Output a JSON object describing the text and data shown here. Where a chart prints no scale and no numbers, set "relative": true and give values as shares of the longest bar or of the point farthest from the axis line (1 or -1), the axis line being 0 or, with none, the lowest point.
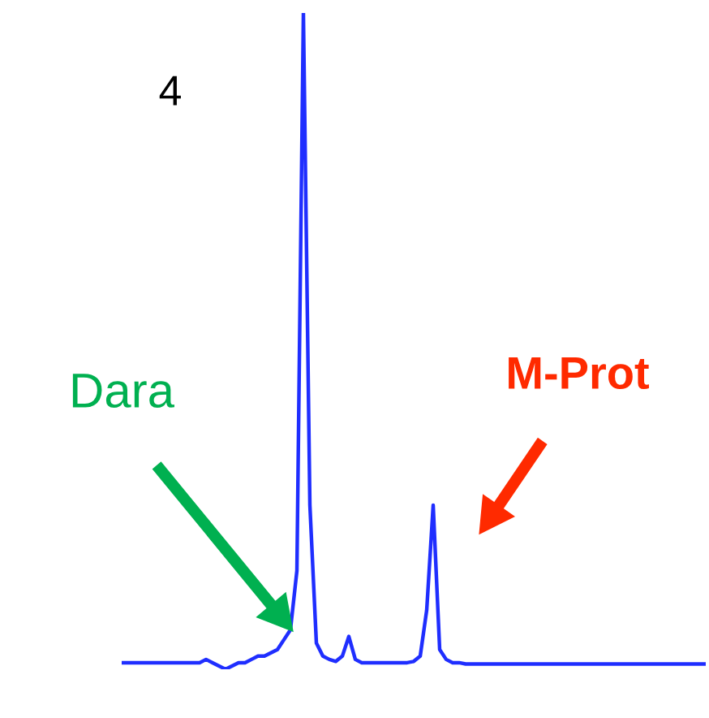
{
  "chart_data": {
    "type": "line",
    "relative": true,
    "categories": [
      null,
      null,
      null,
      null,
      null,
      null,
      null,
      null,
      null,
      null,
      null,
      null,
      null,
      null,
      null,
      null,
      null,
      null,
      null,
      null,
      null,
      null,
      null,
      null,
      null,
      null,
      null,
      null,
      null,
      null,
      null,
      null,
      null,
      null,
      null,
      null,
      null,
      null,
      null,
      null,
      null,
      null,
      null,
      null,
      null,
      null,
      null,
      null,
      null,
      null,
      null,
      null,
      null,
      null,
      null,
      null,
      null,
      null,
      null,
      null,
      null,
      null,
      null,
      null,
      null,
      null,
      null,
      null,
      null,
      null,
      null,
      null,
      null,
      null,
      null,
      null,
      null,
      null,
      null,
      null,
      null,
      null,
      null,
      null,
      null,
      null,
      null,
      null,
      null,
      null,
      null
    ],
    "series": [
      {
        "color": "#1f2eff",
        "values": [
          0.01,
          0.01,
          0.01,
          0.01,
          0.01,
          0.01,
          0.01,
          0.01,
          0.01,
          0.01,
          0.01,
          0.01,
          0.01,
          0.015,
          0.01,
          0.005,
          0,
          0.005,
          0.01,
          0.01,
          0.015,
          0.02,
          0.02,
          0.025,
          0.03,
          0.045,
          0.06,
          0.15,
          1,
          0.25,
          0.04,
          0.02,
          0.015,
          0.012,
          0.02,
          0.05,
          0.015,
          0.01,
          0.01,
          0.01,
          0.01,
          0.01,
          0.01,
          0.01,
          0.01,
          0.012,
          0.02,
          0.09,
          0.25,
          0.03,
          0.015,
          0.01,
          0.01,
          0.008,
          0.008,
          0.008,
          0.008,
          0.008,
          0.008,
          0.008,
          0.008,
          0.008,
          0.008,
          0.008,
          0.008,
          0.008,
          0.008,
          0.008,
          0.008,
          0.008,
          0.008,
          0.008,
          0.008,
          0.008,
          0.008,
          0.008,
          0.008,
          0.008,
          0.008,
          0.008,
          0.008,
          0.008,
          0.008,
          0.008,
          0.008,
          0.008,
          0.008,
          0.008,
          0.008,
          0.008,
          0.008
        ]
      }
    ],
    "annotations": [
      "4",
      "Dara",
      "M-Prot"
    ]
  }
}
